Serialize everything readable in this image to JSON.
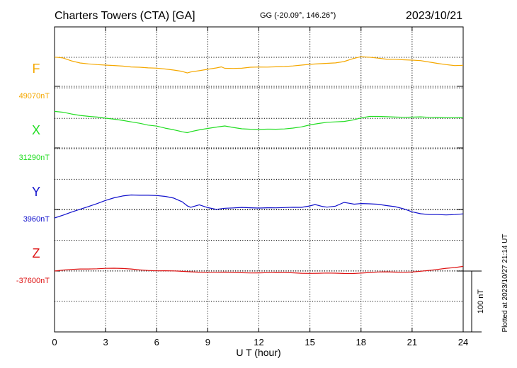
{
  "header": {
    "station": "Charters Towers (CTA)  [GA]",
    "coords": "GG (-20.09°, 146.26°)",
    "date": "2023/10/21"
  },
  "footer": {
    "plotted": "Plotted at 2023/10/27 21:14 UT"
  },
  "chart_data": {
    "type": "line",
    "xlabel": "U T (hour)",
    "xlim": [
      0,
      24
    ],
    "xticks": [
      0,
      3,
      6,
      9,
      12,
      15,
      18,
      21,
      24
    ],
    "scale_bar": {
      "label": "100 nT",
      "value_nT": 100
    },
    "grid": true,
    "series": [
      {
        "name": "F",
        "baseline_label": "49070nT",
        "baseline_nT": 49070,
        "color": "#f5a800",
        "x": [
          0,
          0.5,
          1,
          1.5,
          2,
          2.5,
          3,
          3.5,
          4,
          4.5,
          5,
          5.5,
          6,
          6.5,
          7,
          7.5,
          7.8,
          8,
          8.5,
          9,
          9.5,
          9.8,
          10,
          10.5,
          11,
          11.5,
          12,
          12.5,
          13,
          13.5,
          14,
          14.5,
          15,
          15.5,
          16,
          16.5,
          17,
          17.5,
          18,
          18.5,
          19,
          19.5,
          20,
          20.5,
          21,
          21.5,
          22,
          22.5,
          23,
          23.5,
          24
        ],
        "values": [
          48,
          46,
          41,
          38,
          37,
          36,
          35,
          34,
          33,
          32,
          32,
          31,
          30,
          28,
          26,
          24,
          22,
          24,
          26,
          28,
          30,
          32,
          30,
          30,
          30,
          31,
          31,
          31,
          32,
          33,
          34,
          35,
          36,
          37,
          38,
          39,
          41,
          45,
          48,
          47,
          46,
          45,
          45,
          44,
          43,
          42,
          40,
          38,
          36,
          34,
          34
        ]
      },
      {
        "name": "X",
        "baseline_label": "31290nT",
        "baseline_nT": 31290,
        "color": "#22dd22",
        "x": [
          0,
          0.5,
          1,
          1.5,
          2,
          2.5,
          3,
          3.5,
          4,
          4.5,
          5,
          5.5,
          6,
          6.5,
          7,
          7.5,
          7.8,
          8,
          8.5,
          9,
          9.5,
          10,
          10.5,
          11,
          11.5,
          12,
          12.5,
          13,
          13.5,
          14,
          14.5,
          15,
          15.5,
          16,
          16.5,
          17,
          17.5,
          18,
          18.5,
          19,
          19.5,
          20,
          20.5,
          21,
          21.5,
          22,
          22.5,
          23,
          23.5,
          24
        ],
        "values": [
          60,
          58,
          55,
          53,
          52,
          51,
          49,
          47,
          45,
          43,
          41,
          38,
          36,
          32,
          29,
          26,
          25,
          27,
          30,
          32,
          34,
          36,
          34,
          32,
          31,
          30,
          30,
          30,
          31,
          33,
          35,
          38,
          40,
          42,
          43,
          44,
          46,
          49,
          51,
          51,
          51,
          51,
          51,
          51,
          51,
          50,
          50,
          50,
          50,
          50
        ]
      },
      {
        "name": "Y",
        "baseline_label": "3960nT",
        "baseline_nT": 3960,
        "color": "#1010cc",
        "x": [
          0,
          0.5,
          1,
          1.5,
          2,
          2.5,
          3,
          3.5,
          4,
          4.5,
          5,
          5.5,
          6,
          6.5,
          7,
          7.5,
          7.8,
          8,
          8.5,
          9,
          9.5,
          10,
          10.5,
          11,
          11.5,
          12,
          12.5,
          13,
          13.5,
          14,
          14.5,
          15,
          15.3,
          15.7,
          16,
          16.5,
          17,
          17.3,
          17.6,
          18,
          18.5,
          19,
          19.5,
          20,
          20.5,
          21,
          21.5,
          22,
          22.5,
          23,
          23.5,
          24
        ],
        "values": [
          -14,
          -10,
          -5,
          0,
          5,
          10,
          15,
          19,
          22,
          24,
          24,
          24,
          23,
          21,
          18,
          12,
          6,
          4,
          8,
          3,
          0,
          2,
          3,
          4,
          3,
          2,
          2,
          2,
          3,
          4,
          4,
          6,
          8,
          5,
          4,
          6,
          12,
          10,
          8,
          9,
          9,
          9,
          7,
          5,
          1,
          -4,
          -7,
          -8,
          -8,
          -9,
          -9,
          -8
        ]
      },
      {
        "name": "Z",
        "baseline_label": "-37600nT",
        "baseline_nT": -37600,
        "color": "#dd1111",
        "x": [
          0,
          0.5,
          1,
          1.5,
          2,
          2.5,
          3,
          3.5,
          4,
          4.5,
          5,
          5.5,
          6,
          6.5,
          7,
          7.5,
          8,
          8.5,
          9,
          9.5,
          10,
          10.5,
          11,
          11.5,
          12,
          12.5,
          13,
          13.5,
          14,
          14.5,
          15,
          15.5,
          16,
          16.5,
          17,
          17.5,
          18,
          18.5,
          19,
          19.5,
          20,
          20.5,
          21,
          21.5,
          22,
          22.5,
          23,
          23.5,
          24
        ],
        "values": [
          0,
          1,
          2,
          3,
          3.5,
          4,
          4.5,
          4.5,
          4,
          3.5,
          2.5,
          1.5,
          0.5,
          0,
          -0.5,
          -1,
          -1.2,
          -1.5,
          -1.8,
          -2,
          -2,
          -2.2,
          -2.4,
          -2.6,
          -2.8,
          -3,
          -3,
          -3,
          -3,
          -3.2,
          -3.4,
          -3.4,
          -3.4,
          -3.6,
          -3.8,
          -3.6,
          -3,
          -2.6,
          -2.2,
          -2,
          -2,
          -1.6,
          -1,
          0,
          1,
          2.5,
          4.5,
          6,
          8
        ]
      }
    ]
  }
}
